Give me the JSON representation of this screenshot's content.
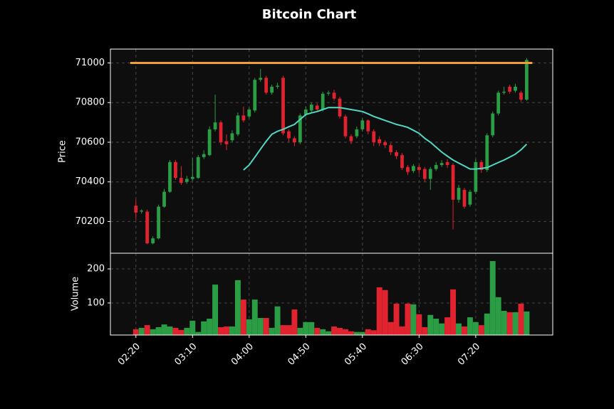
{
  "chart_data": {
    "type": "candlestick",
    "title": "Bitcoin Chart",
    "ylabel": "Price",
    "categories": [
      "02:20",
      null,
      null,
      null,
      null,
      null,
      null,
      null,
      null,
      null,
      "03:10",
      null,
      null,
      null,
      null,
      null,
      null,
      null,
      null,
      null,
      "04:00",
      null,
      null,
      null,
      null,
      null,
      null,
      null,
      null,
      null,
      "04:50",
      null,
      null,
      null,
      null,
      null,
      null,
      null,
      null,
      null,
      "05:40",
      null,
      null,
      null,
      null,
      null,
      null,
      null,
      null,
      null,
      "06:30",
      null,
      null,
      null,
      null,
      null,
      null,
      null,
      null,
      null,
      "07:20",
      null,
      null,
      null,
      null,
      null,
      null,
      null,
      null,
      null
    ],
    "open": [
      70280,
      70250,
      70250,
      70090,
      70115,
      70275,
      70350,
      70500,
      70420,
      70400,
      70415,
      70420,
      70525,
      70535,
      70665,
      70700,
      70605,
      70610,
      70640,
      70735,
      70730,
      70760,
      70915,
      70925,
      70850,
      70880,
      70925,
      70655,
      70620,
      70600,
      70740,
      70760,
      70785,
      70765,
      70845,
      70850,
      70820,
      70730,
      70630,
      70630,
      70665,
      70710,
      70655,
      70615,
      70600,
      70585,
      70550,
      70535,
      70475,
      70455,
      70475,
      70465,
      70415,
      70465,
      70485,
      70500,
      70485,
      70310,
      70360,
      70285,
      70350,
      70500,
      70460,
      70635,
      70745,
      70850,
      70880,
      70860,
      70850,
      70815
    ],
    "high": [
      70310,
      70262,
      70260,
      70125,
      70285,
      70365,
      70510,
      70510,
      70480,
      70430,
      70520,
      70535,
      70560,
      70680,
      70840,
      70710,
      70640,
      70660,
      70750,
      70780,
      70775,
      70925,
      70970,
      70935,
      70890,
      70900,
      70935,
      70665,
      70630,
      70745,
      70780,
      70800,
      70795,
      70855,
      70860,
      70865,
      70830,
      70740,
      70640,
      70680,
      70720,
      70715,
      70665,
      70630,
      70610,
      70595,
      70560,
      70545,
      70485,
      70490,
      70485,
      70475,
      70475,
      70500,
      70510,
      70515,
      70495,
      70385,
      70370,
      70360,
      70515,
      70510,
      70645,
      70755,
      70860,
      70880,
      70890,
      70895,
      70860,
      71025
    ],
    "low": [
      70210,
      70240,
      70085,
      70085,
      70110,
      70270,
      70345,
      70410,
      70385,
      70390,
      70405,
      70415,
      70515,
      70530,
      70655,
      70585,
      70560,
      70600,
      70630,
      70700,
      70720,
      70750,
      70905,
      70840,
      70840,
      70870,
      70635,
      70600,
      70580,
      70590,
      70730,
      70750,
      70755,
      70755,
      70835,
      70810,
      70720,
      70620,
      70590,
      70620,
      70655,
      70640,
      70580,
      70580,
      70570,
      70535,
      70515,
      70460,
      70435,
      70445,
      70440,
      70400,
      70360,
      70455,
      70475,
      70470,
      70160,
      70295,
      70265,
      70275,
      70340,
      70445,
      70450,
      70625,
      70735,
      70840,
      70845,
      70850,
      70805,
      70810
    ],
    "close": [
      70245,
      70255,
      70090,
      70115,
      70275,
      70350,
      70500,
      70420,
      70395,
      70415,
      70425,
      70525,
      70540,
      70665,
      70700,
      70600,
      70590,
      70645,
      70735,
      70710,
      70765,
      70915,
      70925,
      70850,
      70880,
      70885,
      70645,
      70620,
      70600,
      70735,
      70765,
      70790,
      70765,
      70845,
      70850,
      70820,
      70730,
      70630,
      70605,
      70665,
      70710,
      70655,
      70600,
      70595,
      70585,
      70550,
      70530,
      70470,
      70450,
      70480,
      70460,
      70415,
      70465,
      70485,
      70495,
      70485,
      70310,
      70370,
      70275,
      70350,
      70500,
      70460,
      70635,
      70745,
      70850,
      70855,
      70855,
      70880,
      70815,
      71015
    ],
    "up_color": "#2a9d45",
    "down_color": "#e0232f",
    "ylim": [
      70040,
      71070
    ],
    "yticks": [
      70200,
      70400,
      70600,
      70800,
      71000
    ],
    "grid": true,
    "hline": {
      "value": 71000,
      "color": "#f0a030"
    },
    "moving_average": {
      "color": "#4fd8c4",
      "values": [
        null,
        null,
        null,
        null,
        null,
        null,
        null,
        null,
        null,
        null,
        null,
        null,
        null,
        null,
        null,
        null,
        null,
        null,
        null,
        70460,
        70485,
        70525,
        70565,
        70605,
        70640,
        70655,
        70665,
        70678,
        70690,
        70715,
        70740,
        70748,
        70755,
        70765,
        70775,
        70775,
        70775,
        70770,
        70765,
        70760,
        70755,
        70743,
        70730,
        70720,
        70710,
        70700,
        70690,
        70683,
        70675,
        70660,
        70645,
        70620,
        70600,
        70575,
        70550,
        70530,
        70510,
        70495,
        70480,
        70465,
        70465,
        70468,
        70472,
        70485,
        70498,
        70510,
        70525,
        70540,
        70562,
        70590
      ]
    },
    "volume": {
      "ylabel": "Volume",
      "values": [
        23,
        27,
        35,
        23,
        29,
        37,
        31,
        27,
        21,
        27,
        48,
        15,
        46,
        54,
        154,
        29,
        31,
        31,
        167,
        110,
        52,
        110,
        56,
        56,
        27,
        90,
        35,
        35,
        81,
        27,
        44,
        44,
        27,
        23,
        17,
        31,
        27,
        23,
        17,
        15,
        15,
        23,
        20,
        146,
        138,
        44,
        98,
        31,
        98,
        96,
        67,
        29,
        65,
        54,
        40,
        58,
        140,
        40,
        31,
        58,
        44,
        35,
        69,
        223,
        117,
        77,
        73,
        73,
        98,
        75
      ],
      "ylim": [
        6,
        246
      ],
      "yticks": [
        100,
        200
      ]
    }
  }
}
